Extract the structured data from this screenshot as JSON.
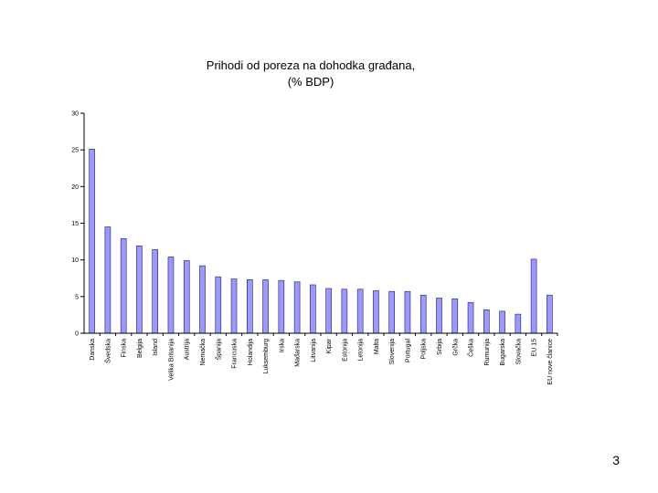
{
  "slide": {
    "page_number": "3"
  },
  "chart_data": {
    "type": "bar",
    "title": "Prihodi od  poreza na dohodka građana,",
    "subtitle": "(% BDP)",
    "xlabel": "",
    "ylabel": "",
    "ylim": [
      0,
      30
    ],
    "yticks": [
      0,
      5,
      10,
      15,
      20,
      25,
      30
    ],
    "grid": false,
    "bar_color": "#9999ff",
    "categories": [
      "Danska",
      "Švedska",
      "Finska",
      "Belgija",
      "Island",
      "Velika Britanija",
      "Austrija",
      "Nemačka",
      "Španija",
      "Francuska",
      "Holandija",
      "Luksemburg",
      "Irska",
      "Mađarska",
      "Litvanija",
      "Kipar",
      "Estonija",
      "Letonija",
      "Malta",
      "Slovenija",
      "Portugal",
      "Poljska",
      "Srbija",
      "Grčka",
      "Češka",
      "Rumunija",
      "Bugarska",
      "Slovačka",
      "EU 15",
      "EU nove članice"
    ],
    "values": [
      25.1,
      14.5,
      12.9,
      11.9,
      11.4,
      10.4,
      9.9,
      9.2,
      7.7,
      7.4,
      7.3,
      7.3,
      7.2,
      7.0,
      6.6,
      6.1,
      6.0,
      6.0,
      5.8,
      5.7,
      5.7,
      5.2,
      4.8,
      4.7,
      4.2,
      3.2,
      3.0,
      2.6,
      10.1,
      5.2
    ]
  }
}
